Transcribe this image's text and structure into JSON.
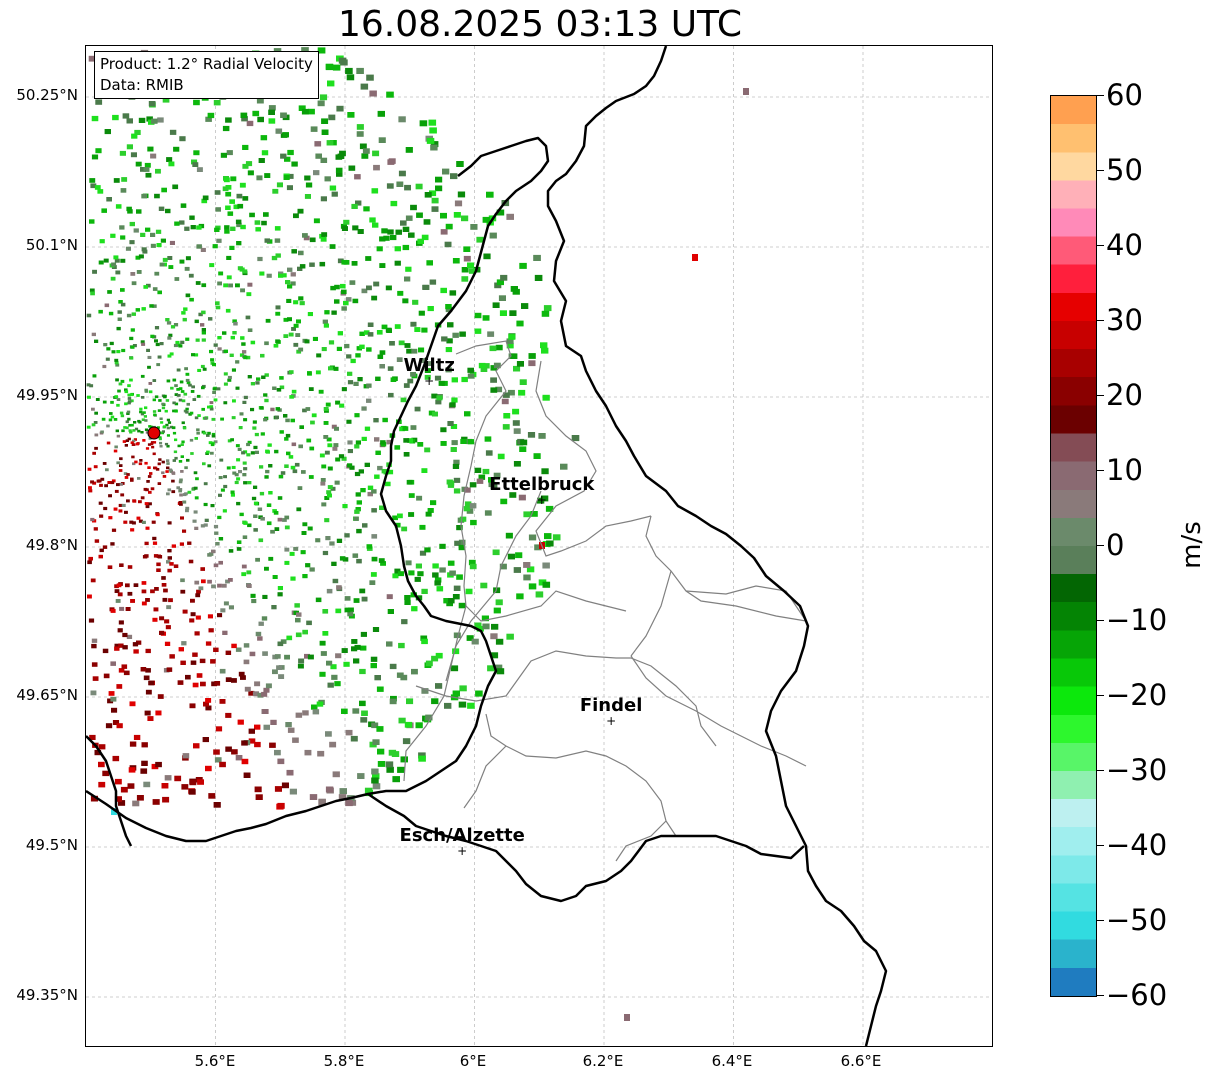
{
  "title": "16.08.2025 03:13 UTC",
  "info": {
    "line1": "Product: 1.2° Radial Velocity",
    "line2": "Data: RMIB"
  },
  "lat_labels": [
    "50.25°N",
    "50.1°N",
    "49.95°N",
    "49.8°N",
    "49.65°N",
    "49.5°N",
    "49.35°N"
  ],
  "lon_labels": [
    "5.6°E",
    "5.8°E",
    "6°E",
    "6.2°E",
    "6.4°E",
    "6.6°E"
  ],
  "cities": [
    {
      "name": "Wiltz",
      "lon": 5.93,
      "lat": 49.966
    },
    {
      "name": "Ettelbruck",
      "lon": 6.104,
      "lat": 49.847
    },
    {
      "name": "Findel",
      "lon": 6.211,
      "lat": 49.626
    },
    {
      "name": "Esch/Alzette",
      "lon": 5.981,
      "lat": 49.496
    }
  ],
  "radar_site": {
    "lon": 5.505,
    "lat": 49.914
  },
  "colorbar": {
    "unit": "m/s",
    "min": -60,
    "max": 60,
    "tick_labels": [
      "60",
      "50",
      "40",
      "30",
      "20",
      "10",
      "0",
      "−10",
      "−20",
      "−30",
      "−40",
      "−50",
      "−60"
    ],
    "colors_bottom_to_top": [
      "#1f7cc0",
      "#2ab3cc",
      "#31dbe0",
      "#55e3e3",
      "#7de9e9",
      "#a0eeee",
      "#bdf0f0",
      "#8ff0b0",
      "#58f568",
      "#2df72d",
      "#0ce80c",
      "#08c808",
      "#06a506",
      "#048404",
      "#036603",
      "#5a7f5a",
      "#6b8a6b",
      "#8a7a7a",
      "#8a6a72",
      "#844c55",
      "#6b0000",
      "#8a0000",
      "#a80000",
      "#c80000",
      "#e60000",
      "#ff1f3c",
      "#ff5a78",
      "#ff8ab8",
      "#ffb0b8",
      "#ffd8a0",
      "#ffc070",
      "#ffa050"
    ]
  }
}
